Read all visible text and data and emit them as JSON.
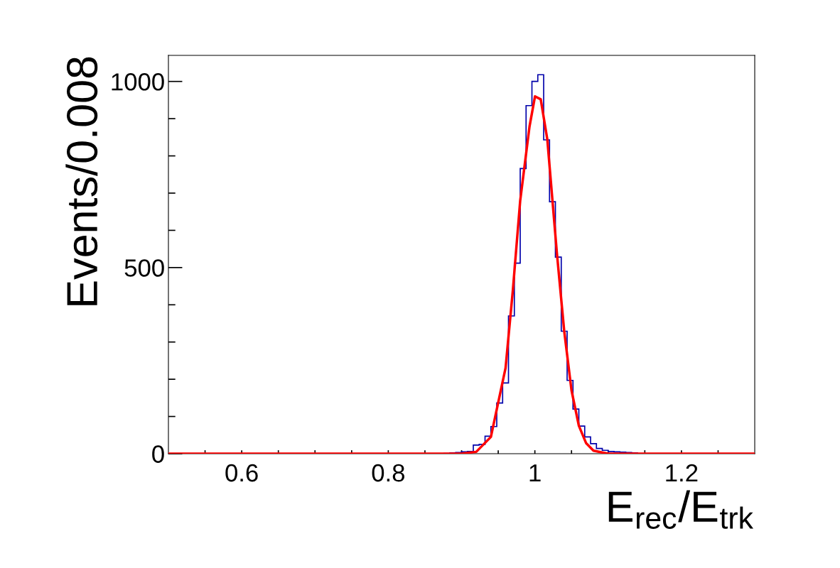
{
  "chart_data": {
    "type": "histogram",
    "xlabel": "E$_{rec}$/E$_{trk}$",
    "ylabel": "Events/0.008",
    "xlim": [
      0.5,
      1.3
    ],
    "ylim": [
      0,
      1070
    ],
    "xticks": [
      {
        "value": 0.55,
        "label": null
      },
      0.6,
      {
        "value": 0.65,
        "label": null
      },
      {
        "value": 0.7,
        "label": null
      },
      {
        "value": 0.75,
        "label": null
      },
      0.8,
      {
        "value": 0.85,
        "label": null
      },
      {
        "value": 0.9,
        "label": null
      },
      {
        "value": 0.95,
        "label": null
      },
      {
        "value": 1,
        "label": "1"
      },
      {
        "value": 1.05,
        "label": null
      },
      {
        "value": 1.1,
        "label": null
      },
      {
        "value": 1.15,
        "label": null
      },
      1.2,
      {
        "value": 1.25,
        "label": null
      }
    ],
    "yticks": [
      0,
      {
        "value": 100,
        "label": null
      },
      {
        "value": 200,
        "label": null
      },
      {
        "value": 300,
        "label": null
      },
      {
        "value": 400,
        "label": null
      },
      500,
      {
        "value": 600,
        "label": null
      },
      {
        "value": 700,
        "label": null
      },
      {
        "value": 800,
        "label": null
      },
      {
        "value": 900,
        "label": null
      },
      1000
    ],
    "grid": false,
    "legend": false,
    "series": [
      {
        "type": "histogram",
        "color": "#0000aa",
        "bins": [
          0.852,
          0.86,
          0.868,
          0.876,
          0.884,
          0.892,
          0.9,
          0.908,
          0.916,
          0.924,
          0.932,
          0.94,
          0.948,
          0.956,
          0.964,
          0.972,
          0.98,
          0.988,
          0.996,
          1.004,
          1.012,
          1.02,
          1.028,
          1.036,
          1.044,
          1.052,
          1.06,
          1.068,
          1.076,
          1.084,
          1.092,
          1.1,
          1.108,
          1.116,
          1.124,
          1.132,
          1.14,
          1.148
        ],
        "values": [
          0,
          0,
          0,
          1,
          2,
          3,
          5,
          6,
          23,
          25,
          47,
          73,
          136,
          190,
          370,
          512,
          766,
          935,
          1000,
          1018,
          843,
          677,
          528,
          329,
          197,
          120,
          74,
          45,
          27,
          14,
          9,
          6,
          5,
          4,
          3,
          2,
          0
        ]
      },
      {
        "type": "line",
        "color": "#ff0000",
        "x": [
          0.5,
          0.9,
          0.92,
          0.94,
          0.96,
          0.97,
          0.98,
          0.9927,
          1.0002,
          1.008,
          1.017,
          1.03,
          1.04,
          1.05,
          1.06,
          1.07,
          1.08,
          1.1,
          1.3
        ],
        "values": [
          0,
          0,
          5,
          45,
          230,
          440,
          680,
          879,
          960,
          952,
          844,
          540,
          330,
          170,
          75,
          28,
          8,
          0,
          0
        ]
      }
    ]
  }
}
